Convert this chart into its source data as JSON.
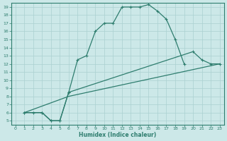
{
  "xlabel": "Humidex (Indice chaleur)",
  "xlim": [
    -0.5,
    23.5
  ],
  "ylim": [
    4.5,
    19.5
  ],
  "xticks": [
    0,
    1,
    2,
    3,
    4,
    5,
    6,
    7,
    8,
    9,
    10,
    11,
    12,
    13,
    14,
    15,
    16,
    17,
    18,
    19,
    20,
    21,
    22,
    23
  ],
  "yticks": [
    5,
    6,
    7,
    8,
    9,
    10,
    11,
    12,
    13,
    14,
    15,
    16,
    17,
    18,
    19
  ],
  "line_color": "#2e7d6e",
  "bg_color": "#cce8e8",
  "grid_color": "#aad0d0",
  "line1_x": [
    1,
    2,
    3,
    4,
    5,
    6,
    7,
    8,
    9,
    10,
    11,
    12,
    13,
    14,
    15,
    16,
    17,
    18,
    19
  ],
  "line1_y": [
    6,
    6,
    6,
    5,
    5,
    8.5,
    12.5,
    13,
    16,
    17,
    17,
    19,
    19,
    19,
    19.3,
    18.5,
    17.5,
    15,
    12
  ],
  "line2_x": [
    1,
    3,
    4,
    5,
    6,
    20,
    21,
    22,
    23
  ],
  "line2_y": [
    6,
    6,
    5,
    5,
    8.5,
    13.5,
    12.5,
    12,
    12
  ],
  "line3_x": [
    1,
    6,
    23
  ],
  "line3_y": [
    6,
    8.0,
    12
  ],
  "marker": "+"
}
